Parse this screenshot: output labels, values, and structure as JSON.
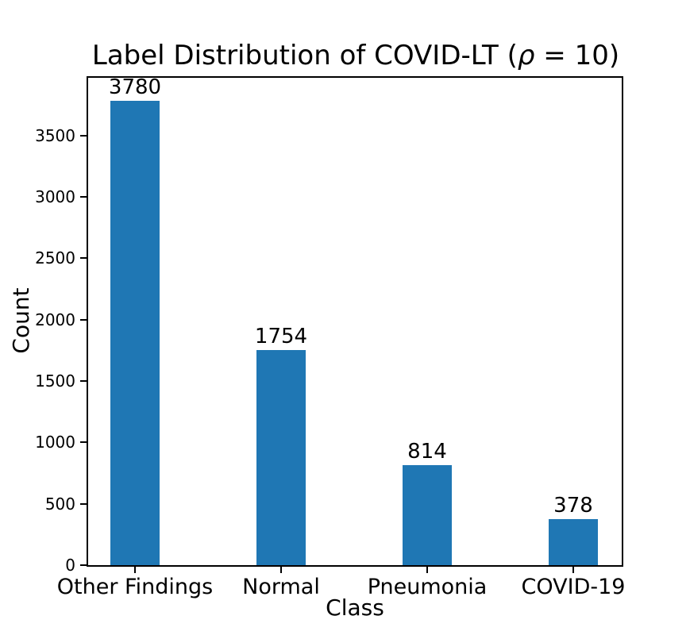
{
  "figure": {
    "title": {
      "text": "Label Distribution of COVID-LT (ρ = 10)",
      "prefix": "Label Distribution of COVID-LT (",
      "rho": "ρ",
      "suffix": " = 10)"
    }
  },
  "chart_data": {
    "type": "bar",
    "title": "Label Distribution of COVID-LT (ρ = 10)",
    "xlabel": "Class",
    "ylabel": "Count",
    "categories": [
      "Other Findings",
      "Normal",
      "Pneumonia",
      "COVID-19"
    ],
    "values": [
      3780,
      1754,
      814,
      378
    ],
    "bar_value_labels": [
      "3780",
      "1754",
      "814",
      "378"
    ],
    "yticks": [
      0,
      500,
      1000,
      1500,
      2000,
      2500,
      3000,
      3500
    ],
    "ylim": [
      0,
      3969
    ],
    "bar_color": "#1f77b4",
    "text_color": "#000000",
    "grid": false,
    "legend": "none"
  }
}
